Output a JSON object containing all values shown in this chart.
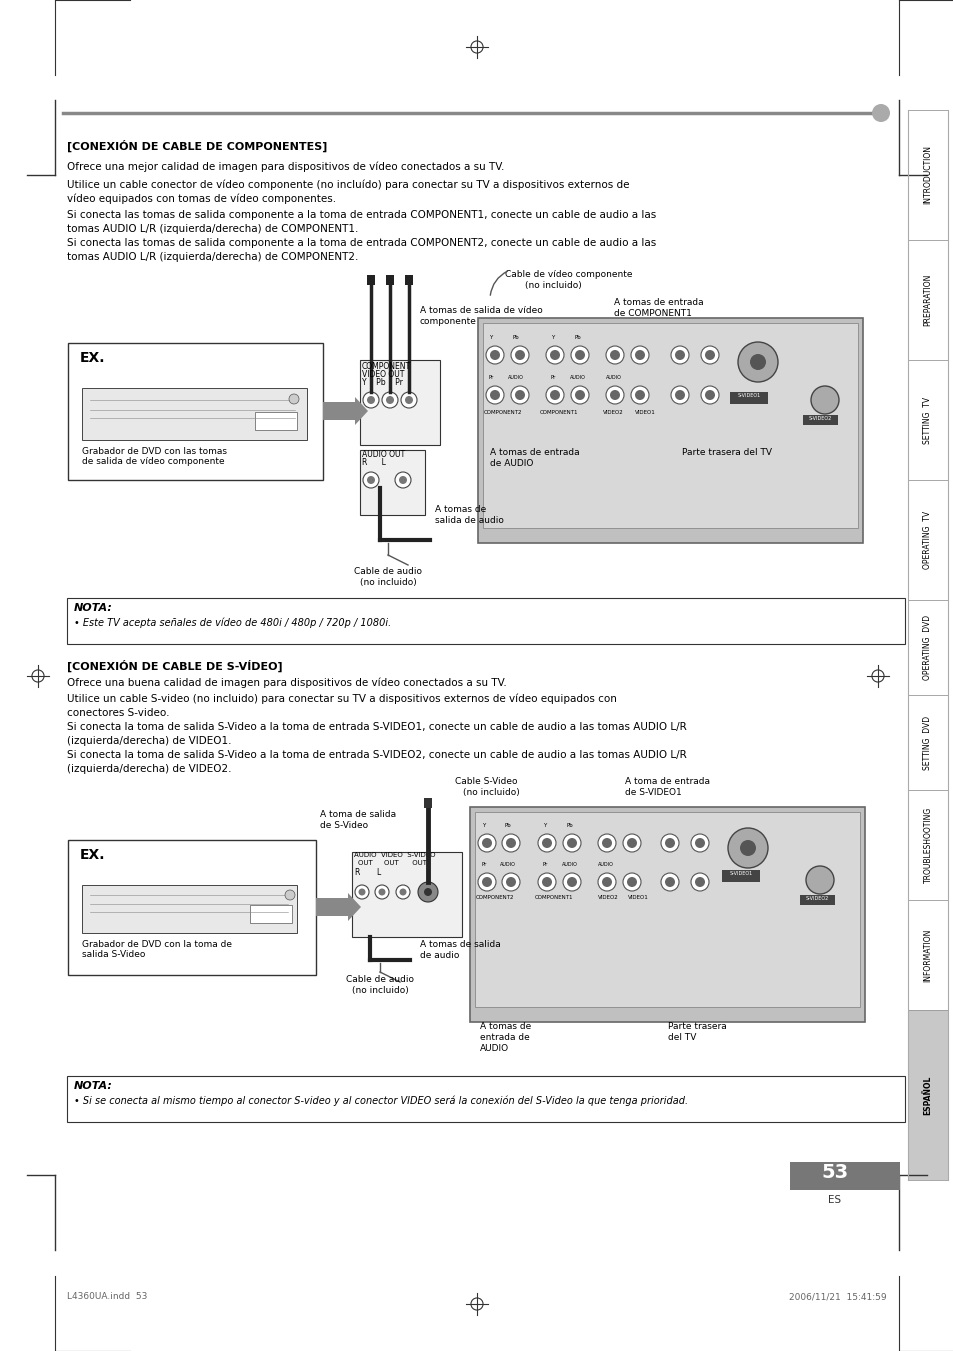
{
  "bg_color": "#ffffff",
  "page_width": 9.54,
  "page_height": 13.51,
  "section1_title": "[CONEXIÓN DE CABLE DE COMPONENTES]",
  "section1_para1": "Ofrece una mejor calidad de imagen para dispositivos de vídeo conectados a su TV.",
  "section1_para2a": "Utilice un cable conector de vídeo componente (no incluído) para conectar su TV a dispositivos externos de",
  "section1_para2b": "vídeo equipados con tomas de vídeo componentes.",
  "section1_para3a": "Si conecta las tomas de salida componente a la toma de entrada COMPONENT1, conecte un cable de audio a las",
  "section1_para3b": "tomas AUDIO L/R (izquierda/derecha) de COMPONENT1.",
  "section1_para4a": "Si conecta las tomas de salida componente a la toma de entrada COMPONENT2, conecte un cable de audio a las",
  "section1_para4b": "tomas AUDIO L/R (izquierda/derecha) de COMPONENT2.",
  "nota1_title": "NOTA:",
  "nota1_text": "• Este TV acepta señales de vídeo de 480i / 480p / 720p / 1080i.",
  "section2_title": "[CONEXIÓN DE CABLE DE S-VÍDEO]",
  "section2_para1": "Ofrece una buena calidad de imagen para dispositivos de vídeo conectados a su TV.",
  "section2_para2a": "Utilice un cable S-video (no incluido) para conectar su TV a dispositivos externos de vídeo equipados con",
  "section2_para2b": "conectores S-video.",
  "section2_para3a": "Si conecta la toma de salida S-Video a la toma de entrada S-VIDEO1, conecte un cable de audio a las tomas AUDIO L/R",
  "section2_para3b": "(izquierda/derecha) de VIDEO1.",
  "section2_para4a": "Si conecta la toma de salida S-Video a la toma de entrada S-VIDEO2, conecte un cable de audio a las tomas AUDIO L/R",
  "section2_para4b": "(izquierda/derecha) de VIDEO2.",
  "nota2_title": "NOTA:",
  "nota2_text": "• Si se conecta al mismo tiempo al conector S-video y al conector VIDEO será la conexión del S-Video la que tenga prioridad.",
  "page_number": "53",
  "page_es": "ES",
  "footer_left": "L4360UA.indd  53",
  "footer_right": "2006/11/21  15:41:59",
  "sidebar_sections": [
    [
      110,
      240,
      "INTRODUCTION"
    ],
    [
      240,
      360,
      "PREPARATION"
    ],
    [
      360,
      480,
      "SETTING  TV"
    ],
    [
      480,
      600,
      "OPERATING  TV"
    ],
    [
      600,
      695,
      "OPERATING  DVD"
    ],
    [
      695,
      790,
      "SETTING  DVD"
    ],
    [
      790,
      900,
      "TROUBLESHOOTING"
    ],
    [
      900,
      1010,
      "INFORMATION"
    ],
    [
      1010,
      1180,
      "ESPAÑOL"
    ]
  ],
  "sidebar_active": "ESPAÑOL"
}
